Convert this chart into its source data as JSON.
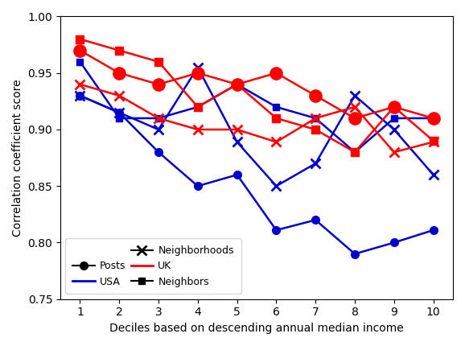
{
  "x": [
    1,
    2,
    3,
    4,
    5,
    6,
    7,
    8,
    9,
    10
  ],
  "usa_posts": [
    0.93,
    0.915,
    0.88,
    0.85,
    0.86,
    0.811,
    0.82,
    0.79,
    0.8,
    0.811
  ],
  "usa_neighborhoods": [
    0.93,
    0.915,
    0.9,
    0.955,
    0.889,
    0.85,
    0.87,
    0.93,
    0.9,
    0.86
  ],
  "usa_neighbors": [
    0.96,
    0.91,
    0.91,
    0.92,
    0.94,
    0.92,
    0.91,
    0.88,
    0.91,
    0.91
  ],
  "uk_posts": [
    0.97,
    0.95,
    0.94,
    0.95,
    0.94,
    0.95,
    0.93,
    0.91,
    0.92,
    0.91
  ],
  "uk_neighborhoods": [
    0.94,
    0.93,
    0.91,
    0.9,
    0.9,
    0.889,
    0.91,
    0.92,
    0.88,
    0.889
  ],
  "uk_neighbors": [
    0.98,
    0.97,
    0.96,
    0.92,
    0.94,
    0.91,
    0.9,
    0.88,
    0.92,
    0.89
  ],
  "usa_color": "#0000cd",
  "uk_color": "#ff0000",
  "xlabel": "Deciles based on descending annual median income",
  "ylabel": "Correlation coefficient score",
  "ylim": [
    0.75,
    1.0
  ],
  "yticks": [
    0.75,
    0.8,
    0.85,
    0.9,
    0.95,
    1.0
  ],
  "legend_posts": "Posts",
  "legend_neighborhoods": "Neighborhoods",
  "legend_neighbors": "Neighbors",
  "legend_usa": "USA",
  "legend_uk": "UK"
}
